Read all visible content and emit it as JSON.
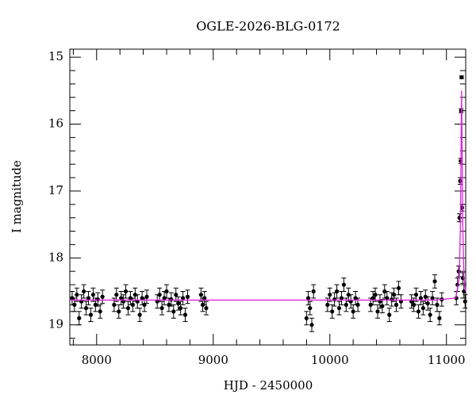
{
  "chart_data": {
    "type": "scatter",
    "title": "OGLE-2026-BLG-0172",
    "xlabel": "HJD - 2450000",
    "ylabel": "I magnitude",
    "xlim": [
      7770,
      11165
    ],
    "ylim": [
      19.3,
      14.88
    ],
    "xticks": [
      8000,
      9000,
      10000,
      11000
    ],
    "yticks": [
      15,
      16,
      17,
      18,
      19
    ],
    "xticks_minor": [
      7800,
      8200,
      8400,
      8600,
      8800,
      9200,
      9400,
      9600,
      9800,
      10200,
      10400,
      10600,
      10800
    ],
    "yticks_minor": [
      15.2,
      15.4,
      15.6,
      15.8,
      16.2,
      16.4,
      16.6,
      16.8,
      17.2,
      17.4,
      17.6,
      17.8,
      18.2,
      18.4,
      18.6,
      18.8,
      19.2
    ],
    "x": [
      7790,
      7810,
      7830,
      7850,
      7870,
      7890,
      7910,
      7930,
      7950,
      7970,
      7990,
      8010,
      8030,
      8050,
      8150,
      8170,
      8190,
      8210,
      8230,
      8250,
      8270,
      8290,
      8310,
      8330,
      8350,
      8370,
      8390,
      8410,
      8430,
      8520,
      8540,
      8560,
      8580,
      8600,
      8620,
      8640,
      8660,
      8680,
      8700,
      8720,
      8740,
      8760,
      8780,
      8895,
      8910,
      8925,
      8940,
      9800,
      9815,
      9830,
      9845,
      9860,
      9980,
      10000,
      10020,
      10040,
      10060,
      10080,
      10100,
      10120,
      10140,
      10160,
      10180,
      10200,
      10220,
      10240,
      10350,
      10370,
      10390,
      10410,
      10430,
      10450,
      10470,
      10490,
      10510,
      10530,
      10550,
      10570,
      10590,
      10610,
      10700,
      10720,
      10740,
      10760,
      10780,
      10800,
      10820,
      10840,
      10860,
      10880,
      10900,
      10920,
      10940,
      10960,
      11085,
      11095,
      11105,
      11112,
      11118,
      11122,
      11126,
      11130,
      11134,
      11140,
      11150,
      11160
    ],
    "series": [
      {
        "color": "#000000",
        "values": [
          18.6,
          18.7,
          18.55,
          18.9,
          18.65,
          18.5,
          18.75,
          18.6,
          18.85,
          18.55,
          18.7,
          18.62,
          18.8,
          18.58,
          18.7,
          18.55,
          18.8,
          18.6,
          18.65,
          18.5,
          18.75,
          18.6,
          18.7,
          18.55,
          18.65,
          18.85,
          18.6,
          18.7,
          18.58,
          18.65,
          18.55,
          18.75,
          18.6,
          18.5,
          18.7,
          18.62,
          18.8,
          18.55,
          18.68,
          18.75,
          18.6,
          18.85,
          18.58,
          18.55,
          18.7,
          18.6,
          18.75,
          18.9,
          18.6,
          18.75,
          19.0,
          18.5,
          18.7,
          18.55,
          18.8,
          18.62,
          18.5,
          18.75,
          18.6,
          18.4,
          18.7,
          18.55,
          18.65,
          18.8,
          18.6,
          18.7,
          18.7,
          18.6,
          18.55,
          18.8,
          18.65,
          18.72,
          18.5,
          18.6,
          18.85,
          18.62,
          18.55,
          18.7,
          18.45,
          18.65,
          18.65,
          18.7,
          18.55,
          18.8,
          18.6,
          18.75,
          18.58,
          18.68,
          18.85,
          18.6,
          18.35,
          18.7,
          18.9,
          18.62,
          18.6,
          18.4,
          18.2,
          17.4,
          16.85,
          16.55,
          15.8,
          15.3,
          17.25,
          18.3,
          18.5,
          18.65
        ],
        "errors": [
          0.1,
          0.1,
          0.1,
          0.1,
          0.1,
          0.1,
          0.1,
          0.1,
          0.1,
          0.1,
          0.1,
          0.1,
          0.1,
          0.1,
          0.1,
          0.1,
          0.1,
          0.1,
          0.1,
          0.1,
          0.1,
          0.1,
          0.1,
          0.1,
          0.1,
          0.1,
          0.1,
          0.1,
          0.1,
          0.1,
          0.1,
          0.1,
          0.1,
          0.1,
          0.1,
          0.1,
          0.1,
          0.1,
          0.1,
          0.1,
          0.1,
          0.1,
          0.1,
          0.1,
          0.1,
          0.1,
          0.1,
          0.1,
          0.1,
          0.1,
          0.1,
          0.1,
          0.1,
          0.1,
          0.1,
          0.1,
          0.1,
          0.1,
          0.1,
          0.1,
          0.1,
          0.1,
          0.1,
          0.1,
          0.1,
          0.1,
          0.1,
          0.1,
          0.1,
          0.1,
          0.1,
          0.1,
          0.1,
          0.1,
          0.1,
          0.1,
          0.1,
          0.1,
          0.1,
          0.1,
          0.1,
          0.1,
          0.1,
          0.1,
          0.1,
          0.1,
          0.1,
          0.1,
          0.1,
          0.1,
          0.1,
          0.1,
          0.1,
          0.1,
          0.1,
          0.1,
          0.08,
          0.06,
          0.05,
          0.04,
          0.03,
          0.02,
          0.05,
          0.08,
          0.1,
          0.1
        ]
      }
    ],
    "model": {
      "type": "line",
      "color": "#e020e0",
      "x": [
        7770,
        10900,
        11080,
        11110,
        11120,
        11125,
        11130,
        11135,
        11140,
        11150,
        11165
      ],
      "y": [
        18.63,
        18.63,
        18.6,
        18.3,
        17.5,
        16.5,
        15.5,
        16.5,
        17.5,
        18.3,
        18.5
      ]
    }
  }
}
